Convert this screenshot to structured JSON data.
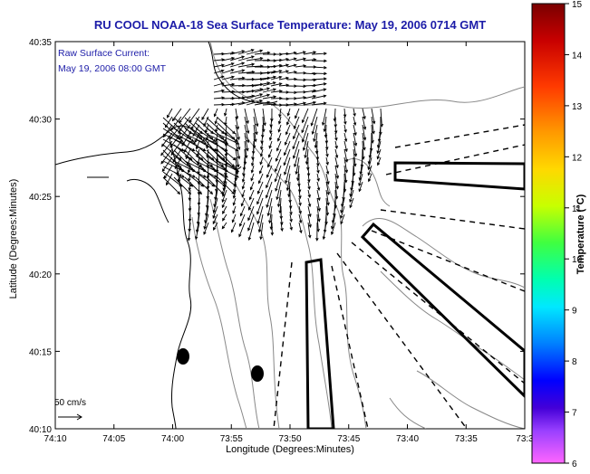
{
  "title": "RU COOL  NOAA-18  Sea Surface Temperature:  May 19, 2006 0714 GMT",
  "legend": {
    "line1": "Raw Surface Current:",
    "line2": "May 19, 2006 08:00 GMT",
    "scale_label": "50 cm/s"
  },
  "axes": {
    "xlabel": "Longitude (Degrees:Minutes)",
    "ylabel": "Latitude (Degrees:Minutes)",
    "x_ticks": [
      "74:10",
      "74:05",
      "74:00",
      "73:55",
      "73:50",
      "73:45",
      "73:40",
      "73:35",
      "73:3"
    ],
    "y_ticks": [
      "40:35",
      "40:30",
      "40:25",
      "40:20",
      "40:15",
      "40:10"
    ]
  },
  "colorbar": {
    "label": "Temperature (°C)",
    "ticks": [
      "15",
      "14",
      "13",
      "12",
      "11",
      "10",
      "9",
      "8",
      "7",
      "6"
    ],
    "range": [
      6,
      15
    ]
  },
  "colors": {
    "title": "#1c1ca8",
    "contour": "#888888",
    "coast": "#000000"
  },
  "markers": [
    {
      "name": "buoy-west",
      "lon": "74:00",
      "lat": "40:14.5"
    },
    {
      "name": "buoy-east",
      "lon": "73:55",
      "lat": "40:13"
    }
  ]
}
